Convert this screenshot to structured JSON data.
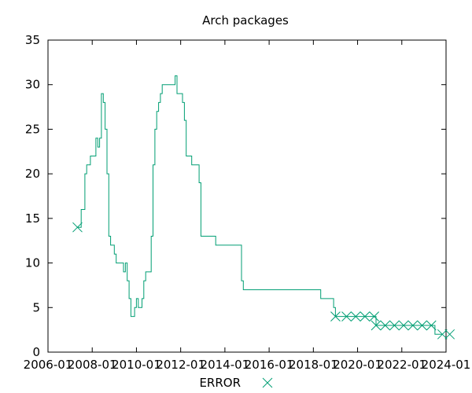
{
  "chart_data": {
    "type": "line",
    "title": "Arch packages",
    "xlabel": "",
    "ylabel": "",
    "xlim": [
      "2006-01",
      "2024-01"
    ],
    "ylim": [
      0,
      35
    ],
    "x_ticks": [
      "2006-01",
      "2008-01",
      "2010-01",
      "2012-01",
      "2014-01",
      "2016-01",
      "2018-01",
      "2020-01",
      "2022-01",
      "2024-01"
    ],
    "y_ticks": [
      0,
      5,
      10,
      15,
      20,
      25,
      30,
      35
    ],
    "grid": false,
    "legend_placement": "bottom-center",
    "series": [
      {
        "name": "ERROR",
        "color": "#009e73",
        "marker": "x",
        "line": "steps",
        "points": [
          [
            "2007-05",
            14
          ],
          [
            "2007-06",
            14
          ],
          [
            "2007-07",
            16
          ],
          [
            "2007-08",
            16
          ],
          [
            "2007-09",
            20
          ],
          [
            "2007-10",
            21
          ],
          [
            "2007-11",
            21
          ],
          [
            "2007-12",
            22
          ],
          [
            "2008-01",
            22
          ],
          [
            "2008-02",
            22
          ],
          [
            "2008-03",
            24
          ],
          [
            "2008-04",
            23
          ],
          [
            "2008-05",
            24
          ],
          [
            "2008-06",
            29
          ],
          [
            "2008-07",
            28
          ],
          [
            "2008-08",
            25
          ],
          [
            "2008-09",
            20
          ],
          [
            "2008-10",
            13
          ],
          [
            "2008-11",
            12
          ],
          [
            "2008-12",
            12
          ],
          [
            "2009-01",
            11
          ],
          [
            "2009-02",
            10
          ],
          [
            "2009-03",
            10
          ],
          [
            "2009-04",
            10
          ],
          [
            "2009-05",
            10
          ],
          [
            "2009-06",
            9
          ],
          [
            "2009-07",
            10
          ],
          [
            "2009-08",
            8
          ],
          [
            "2009-09",
            6
          ],
          [
            "2009-10",
            4
          ],
          [
            "2009-11",
            4
          ],
          [
            "2009-12",
            5
          ],
          [
            "2010-01",
            6
          ],
          [
            "2010-02",
            5
          ],
          [
            "2010-03",
            5
          ],
          [
            "2010-04",
            6
          ],
          [
            "2010-05",
            8
          ],
          [
            "2010-06",
            9
          ],
          [
            "2010-07",
            9
          ],
          [
            "2010-08",
            9
          ],
          [
            "2010-09",
            13
          ],
          [
            "2010-10",
            21
          ],
          [
            "2010-11",
            25
          ],
          [
            "2010-12",
            27
          ],
          [
            "2011-01",
            28
          ],
          [
            "2011-02",
            29
          ],
          [
            "2011-03",
            30
          ],
          [
            "2011-04",
            30
          ],
          [
            "2011-05",
            30
          ],
          [
            "2011-06",
            30
          ],
          [
            "2011-07",
            30
          ],
          [
            "2011-08",
            30
          ],
          [
            "2011-09",
            30
          ],
          [
            "2011-10",
            31
          ],
          [
            "2011-11",
            29
          ],
          [
            "2011-12",
            29
          ],
          [
            "2012-01",
            29
          ],
          [
            "2012-02",
            28
          ],
          [
            "2012-03",
            26
          ],
          [
            "2012-04",
            22
          ],
          [
            "2012-05",
            22
          ],
          [
            "2012-06",
            22
          ],
          [
            "2012-07",
            21
          ],
          [
            "2012-08",
            21
          ],
          [
            "2012-09",
            21
          ],
          [
            "2012-10",
            21
          ],
          [
            "2012-11",
            19
          ],
          [
            "2012-12",
            13
          ],
          [
            "2013-06",
            13
          ],
          [
            "2013-07",
            13
          ],
          [
            "2013-08",
            12
          ],
          [
            "2014-08",
            12
          ],
          [
            "2014-09",
            12
          ],
          [
            "2014-10",
            8
          ],
          [
            "2014-11",
            7
          ],
          [
            "2018-04",
            7
          ],
          [
            "2018-05",
            6
          ],
          [
            "2018-11",
            6
          ],
          [
            "2018-12",
            5
          ],
          [
            "2019-01",
            4
          ],
          [
            "2019-02",
            4
          ],
          [
            "2019-03",
            4
          ],
          [
            "2019-07",
            4
          ],
          [
            "2019-12",
            4
          ],
          [
            "2020-05",
            4
          ],
          [
            "2020-10",
            4
          ],
          [
            "2020-11",
            3
          ],
          [
            "2021-04",
            3
          ],
          [
            "2021-09",
            3
          ],
          [
            "2022-02",
            3
          ],
          [
            "2022-07",
            3
          ],
          [
            "2022-12",
            3
          ],
          [
            "2023-05",
            3
          ],
          [
            "2023-07",
            2
          ],
          [
            "2023-11",
            2
          ]
        ],
        "marker_points": [
          [
            "2007-05",
            14
          ],
          [
            "2019-01",
            4
          ],
          [
            "2019-07",
            4
          ],
          [
            "2019-12",
            4
          ],
          [
            "2020-05",
            4
          ],
          [
            "2020-10",
            4
          ],
          [
            "2020-11",
            3
          ],
          [
            "2021-04",
            3
          ],
          [
            "2021-09",
            3
          ],
          [
            "2022-02",
            3
          ],
          [
            "2022-07",
            3
          ],
          [
            "2022-12",
            3
          ],
          [
            "2023-05",
            3
          ],
          [
            "2023-11",
            2
          ],
          [
            "2024-03",
            2
          ]
        ]
      }
    ]
  }
}
